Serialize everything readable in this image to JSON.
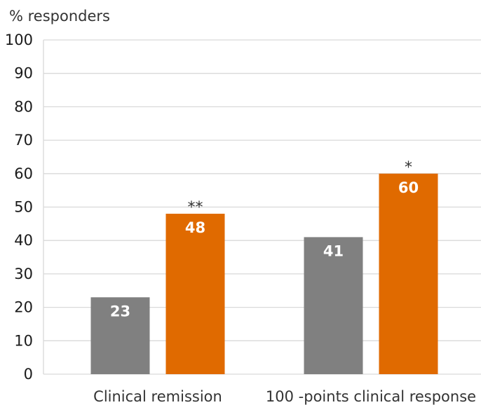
{
  "chart_data": {
    "type": "bar",
    "ylabel": "% responders",
    "ylim": [
      0,
      100
    ],
    "yticks": [
      0,
      10,
      20,
      30,
      40,
      50,
      60,
      70,
      80,
      90,
      100
    ],
    "grid": true,
    "categories": [
      "Clinical remission",
      "100 -points clinical response"
    ],
    "series": [
      {
        "values": [
          23,
          41
        ],
        "labels": [
          "23",
          "41"
        ],
        "color": "#808080"
      },
      {
        "values": [
          48,
          60
        ],
        "labels": [
          "48",
          "60"
        ],
        "color": "#e06a00",
        "annotations": [
          "**",
          "*"
        ]
      }
    ]
  }
}
